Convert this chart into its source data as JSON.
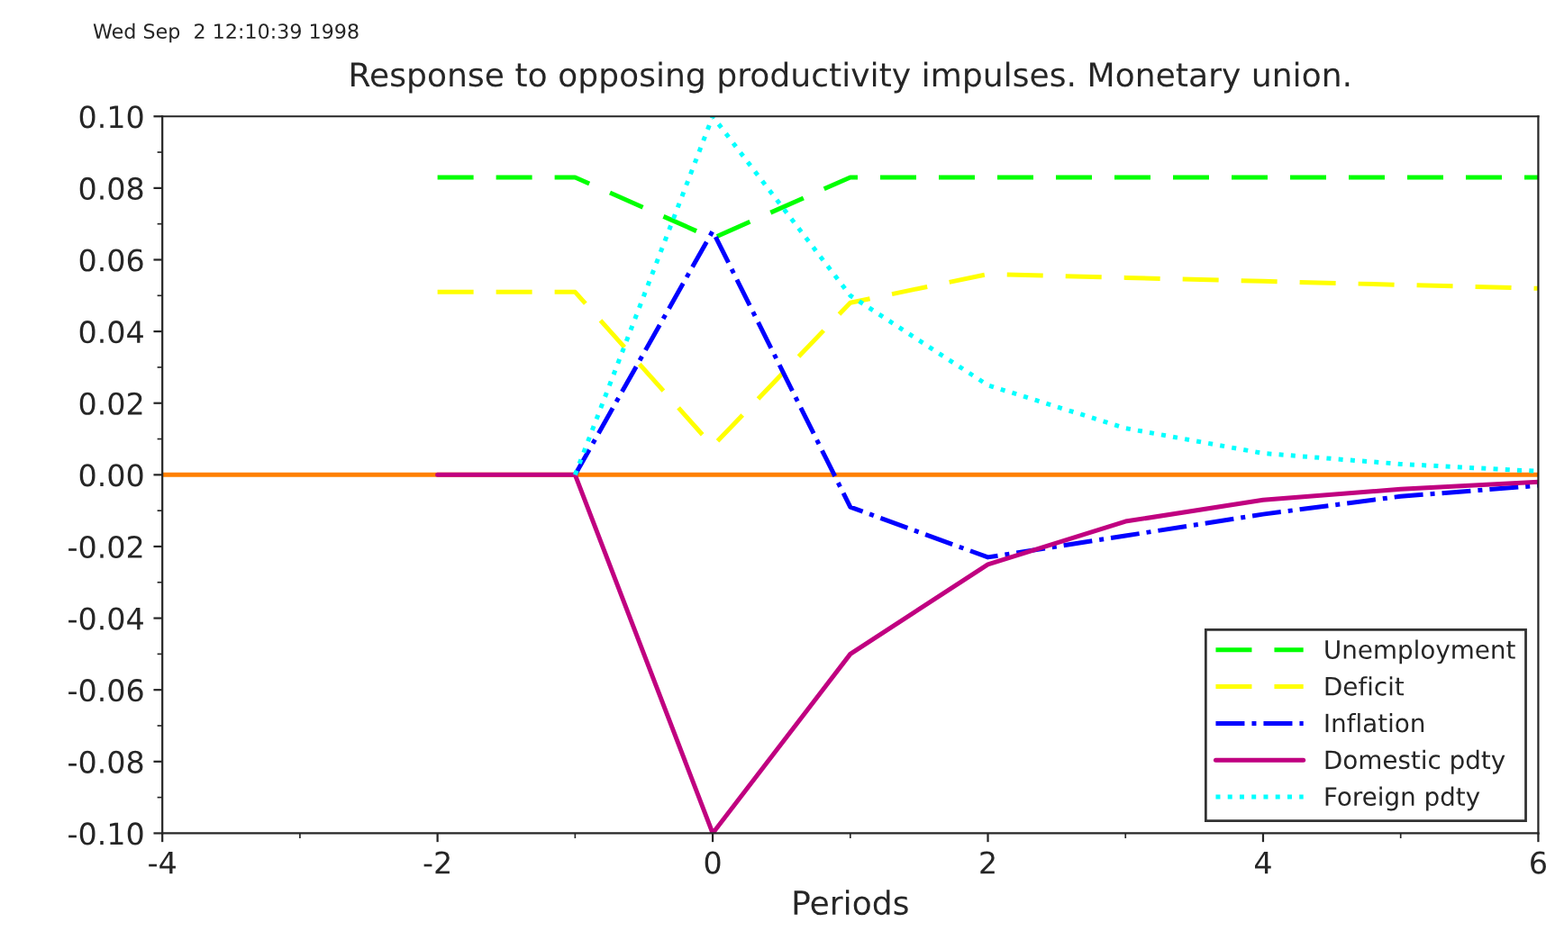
{
  "chart_data": {
    "type": "line",
    "title": "Response to opposing productivity impulses. Monetary union.",
    "xlabel": "Periods",
    "annotations": [
      "Wed Sep  2 12:10:39 1998"
    ],
    "x": [
      -2,
      -1,
      0,
      1,
      2,
      3,
      4,
      5,
      6
    ],
    "series": [
      {
        "name": "Unemployment",
        "color": "#00ff00",
        "line_style": "dashed",
        "values": [
          0.083,
          0.083,
          0.066,
          0.083,
          0.083,
          0.083,
          0.083,
          0.083,
          0.083
        ]
      },
      {
        "name": "Deficit",
        "color": "#ffff00",
        "line_style": "dashed",
        "values": [
          0.051,
          0.051,
          0.008,
          0.048,
          0.056,
          0.055,
          0.054,
          0.053,
          0.052
        ]
      },
      {
        "name": "Inflation",
        "color": "#0000ff",
        "line_style": "dashdot",
        "values": [
          null,
          0,
          0.068,
          -0.009,
          -0.023,
          -0.017,
          -0.011,
          -0.006,
          -0.003
        ]
      },
      {
        "name": "Domestic pdty",
        "color": "#c00080",
        "line_style": "solid",
        "values": [
          0,
          0,
          -0.1,
          -0.05,
          -0.025,
          -0.013,
          -0.007,
          -0.004,
          -0.002
        ]
      },
      {
        "name": "Foreign pdty",
        "color": "#00ffff",
        "line_style": "dotted",
        "values": [
          null,
          0,
          0.1,
          0.05,
          0.025,
          0.013,
          0.006,
          0.003,
          0.001
        ]
      }
    ],
    "ref_lines": [
      {
        "axis": "y",
        "value": 0,
        "color": "#ff8000"
      }
    ],
    "xlim": [
      -4,
      6
    ],
    "xticks": [
      {
        "value": -4,
        "label": "-4"
      },
      {
        "value": -2,
        "label": "-2"
      },
      0,
      2,
      4,
      6
    ],
    "ylim": [
      -0.1,
      0.1
    ],
    "yticks": [
      {
        "value": -0.1,
        "label": "-0.10"
      },
      {
        "value": -0.08,
        "label": "-0.08"
      },
      {
        "value": -0.06,
        "label": "-0.06"
      },
      {
        "value": -0.04,
        "label": "-0.04"
      },
      {
        "value": -0.02,
        "label": "-0.02"
      },
      {
        "value": 0,
        "label": "0.00"
      },
      {
        "value": 0.02,
        "label": "0.02"
      },
      {
        "value": 0.04,
        "label": "0.04"
      },
      {
        "value": 0.06,
        "label": "0.06"
      },
      {
        "value": 0.08,
        "label": "0.08"
      },
      {
        "value": 0.1,
        "label": "0.10"
      }
    ],
    "legend": "bottom right",
    "grid": false,
    "marker": "none"
  }
}
